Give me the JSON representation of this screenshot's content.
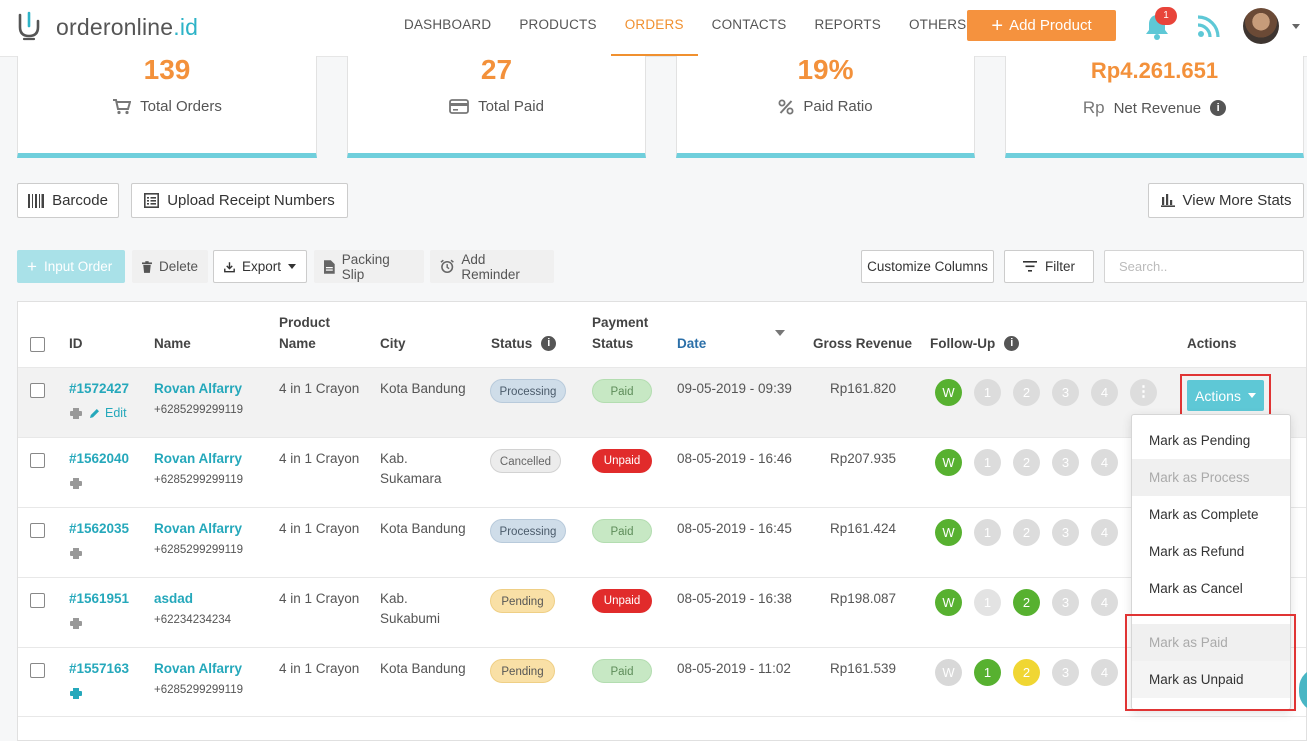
{
  "brand": {
    "name_prefix": "orderonline",
    "name_suffix": ".id"
  },
  "nav": [
    {
      "label": "DASHBOARD"
    },
    {
      "label": "PRODUCTS"
    },
    {
      "label": "ORDERS",
      "active": true
    },
    {
      "label": "CONTACTS"
    },
    {
      "label": "REPORTS"
    },
    {
      "label": "OTHERS"
    }
  ],
  "header": {
    "add_product_label": "Add Product",
    "notification_count": "1"
  },
  "stats": [
    {
      "value": "139",
      "label": "Total Orders",
      "icon": "cart-icon"
    },
    {
      "value": "27",
      "label": "Total Paid",
      "icon": "credit-card-icon"
    },
    {
      "value": "19%",
      "label": "Paid Ratio",
      "icon": "percent-icon"
    },
    {
      "value": "Rp4.261.651",
      "label": "Net Revenue",
      "icon": "rupiah-icon",
      "symbol": "Rp"
    }
  ],
  "toolbar_top": {
    "barcode_label": "Barcode",
    "upload_label": "Upload Receipt Numbers",
    "stats_label": "View More Stats"
  },
  "toolbar": {
    "input_order_label": "Input Order",
    "delete_label": "Delete",
    "export_label": "Export",
    "packing_slip_label": "Packing Slip",
    "add_reminder_label": "Add Reminder",
    "customize_label": "Customize Columns",
    "filter_label": "Filter",
    "search_placeholder": "Search.."
  },
  "table": {
    "headers": {
      "id": "ID",
      "name": "Name",
      "product_line1": "Product",
      "product_line2": "Name",
      "city": "City",
      "status": "Status",
      "payment_line1": "Payment",
      "payment_line2": "Status",
      "date": "Date",
      "gross": "Gross Revenue",
      "followup": "Follow-Up",
      "actions": "Actions"
    },
    "rows": [
      {
        "id": "#1572427",
        "name": "Rovan Alfarry",
        "phone": "+6285299299119",
        "product": "4 in 1 Crayon",
        "city_line1": "Kota Bandung",
        "city_line2": "",
        "status": "Processing",
        "payment": "Paid",
        "date": "09-05-2019 - 09:39",
        "gross": "Rp161.820",
        "edit": "Edit"
      },
      {
        "id": "#1562040",
        "name": "Rovan Alfarry",
        "phone": "+6285299299119",
        "product": "4 in 1 Crayon",
        "city_line1": "Kab.",
        "city_line2": "Sukamara",
        "status": "Cancelled",
        "payment": "Unpaid",
        "date": "08-05-2019 - 16:46",
        "gross": "Rp207.935"
      },
      {
        "id": "#1562035",
        "name": "Rovan Alfarry",
        "phone": "+6285299299119",
        "product": "4 in 1 Crayon",
        "city_line1": "Kota Bandung",
        "city_line2": "",
        "status": "Processing",
        "payment": "Paid",
        "date": "08-05-2019 - 16:45",
        "gross": "Rp161.424"
      },
      {
        "id": "#1561951",
        "name": "asdad",
        "phone": "+62234234234",
        "product": "4 in 1 Crayon",
        "city_line1": "Kab.",
        "city_line2": "Sukabumi",
        "status": "Pending",
        "payment": "Unpaid",
        "date": "08-05-2019 - 16:38",
        "gross": "Rp198.087"
      },
      {
        "id": "#1557163",
        "name": "Rovan Alfarry",
        "phone": "+6285299299119",
        "product": "4 in 1 Crayon",
        "city_line1": "Kota Bandung",
        "city_line2": "",
        "status": "Pending",
        "payment": "Paid",
        "date": "08-05-2019 - 11:02",
        "gross": "Rp161.539"
      }
    ],
    "followup_w": "W",
    "followup_nums": [
      "1",
      "2",
      "3",
      "4"
    ]
  },
  "actions": {
    "button_label": "Actions",
    "menu": [
      {
        "label": "Mark as Pending"
      },
      {
        "label": "Mark as Process",
        "disabled": true
      },
      {
        "label": "Mark as Complete"
      },
      {
        "label": "Mark as Refund"
      },
      {
        "label": "Mark as Cancel"
      },
      {
        "label": "Mark as Paid",
        "disabled": true
      },
      {
        "label": "Mark as Unpaid"
      }
    ]
  },
  "colors": {
    "accent": "#f5923e",
    "teal": "#25a8bb",
    "green": "#57b130",
    "red": "#e12b2b"
  }
}
